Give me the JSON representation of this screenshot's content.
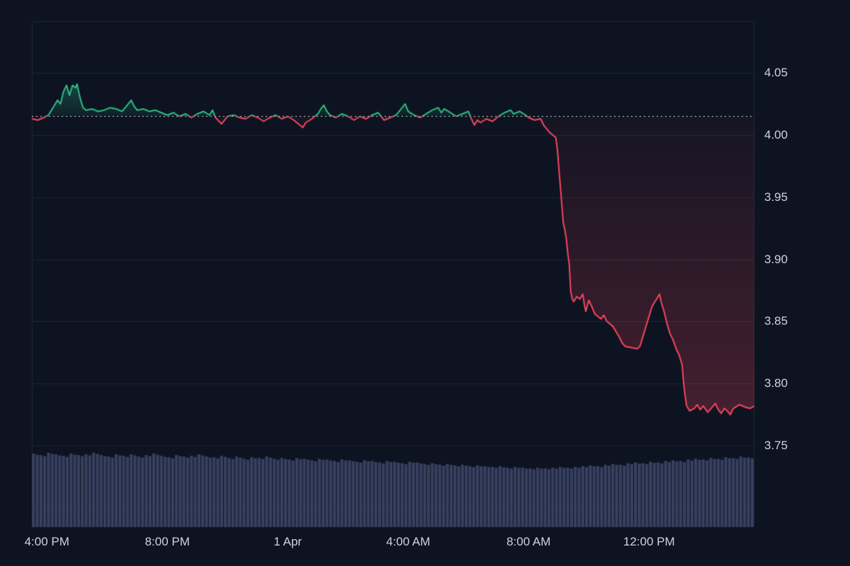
{
  "chart_data": {
    "type": "line",
    "description": "Cryptocurrency price line chart with baseline comparison and volume bars, dark theme",
    "baseline": 4.015,
    "x_axis": {
      "range_hours": [
        0,
        24
      ],
      "tick_hours": [
        0.5,
        4.5,
        8.5,
        12.5,
        16.5,
        20.5
      ],
      "tick_labels": [
        "4:00 PM",
        "8:00 PM",
        "1 Apr",
        "4:00 AM",
        "8:00 AM",
        "12:00 PM"
      ]
    },
    "y_axis": {
      "tick_values": [
        4.05,
        4.0,
        3.95,
        3.9,
        3.85,
        3.8,
        3.75
      ],
      "tick_labels": [
        "4.05",
        "4.00",
        "3.95",
        "3.90",
        "3.85",
        "3.80",
        "3.75"
      ],
      "grid_values": [
        4.05,
        4.0,
        3.95,
        3.9,
        3.85,
        3.8,
        3.75,
        3.7
      ]
    },
    "series": [
      {
        "name": "price",
        "points": [
          [
            0,
            4.013
          ],
          [
            0.2,
            4.012
          ],
          [
            0.4,
            4.014
          ],
          [
            0.55,
            4.016
          ],
          [
            0.7,
            4.022
          ],
          [
            0.85,
            4.028
          ],
          [
            0.95,
            4.025
          ],
          [
            1.05,
            4.035
          ],
          [
            1.15,
            4.04
          ],
          [
            1.25,
            4.032
          ],
          [
            1.35,
            4.04
          ],
          [
            1.45,
            4.038
          ],
          [
            1.5,
            4.041
          ],
          [
            1.6,
            4.03
          ],
          [
            1.7,
            4.022
          ],
          [
            1.8,
            4.02
          ],
          [
            2.0,
            4.021
          ],
          [
            2.2,
            4.019
          ],
          [
            2.4,
            4.02
          ],
          [
            2.6,
            4.022
          ],
          [
            2.8,
            4.021
          ],
          [
            3.0,
            4.019
          ],
          [
            3.2,
            4.025
          ],
          [
            3.3,
            4.028
          ],
          [
            3.4,
            4.023
          ],
          [
            3.5,
            4.02
          ],
          [
            3.7,
            4.021
          ],
          [
            3.9,
            4.019
          ],
          [
            4.1,
            4.02
          ],
          [
            4.3,
            4.018
          ],
          [
            4.5,
            4.016
          ],
          [
            4.7,
            4.018
          ],
          [
            4.9,
            4.015
          ],
          [
            5.1,
            4.017
          ],
          [
            5.3,
            4.014
          ],
          [
            5.5,
            4.017
          ],
          [
            5.7,
            4.019
          ],
          [
            5.9,
            4.016
          ],
          [
            6.0,
            4.02
          ],
          [
            6.1,
            4.014
          ],
          [
            6.3,
            4.009
          ],
          [
            6.4,
            4.012
          ],
          [
            6.5,
            4.015
          ],
          [
            6.7,
            4.016
          ],
          [
            6.9,
            4.014
          ],
          [
            7.1,
            4.013
          ],
          [
            7.3,
            4.016
          ],
          [
            7.5,
            4.014
          ],
          [
            7.7,
            4.011
          ],
          [
            7.9,
            4.014
          ],
          [
            8.1,
            4.016
          ],
          [
            8.3,
            4.013
          ],
          [
            8.5,
            4.015
          ],
          [
            8.7,
            4.012
          ],
          [
            8.9,
            4.008
          ],
          [
            9.0,
            4.006
          ],
          [
            9.1,
            4.01
          ],
          [
            9.3,
            4.013
          ],
          [
            9.5,
            4.017
          ],
          [
            9.6,
            4.021
          ],
          [
            9.7,
            4.024
          ],
          [
            9.8,
            4.019
          ],
          [
            9.9,
            4.016
          ],
          [
            10.1,
            4.014
          ],
          [
            10.3,
            4.017
          ],
          [
            10.5,
            4.015
          ],
          [
            10.7,
            4.012
          ],
          [
            10.9,
            4.015
          ],
          [
            11.1,
            4.013
          ],
          [
            11.3,
            4.016
          ],
          [
            11.5,
            4.018
          ],
          [
            11.6,
            4.015
          ],
          [
            11.7,
            4.012
          ],
          [
            11.9,
            4.014
          ],
          [
            12.1,
            4.016
          ],
          [
            12.3,
            4.022
          ],
          [
            12.4,
            4.025
          ],
          [
            12.5,
            4.019
          ],
          [
            12.7,
            4.016
          ],
          [
            12.9,
            4.014
          ],
          [
            13.1,
            4.017
          ],
          [
            13.3,
            4.02
          ],
          [
            13.5,
            4.022
          ],
          [
            13.6,
            4.018
          ],
          [
            13.7,
            4.021
          ],
          [
            13.9,
            4.018
          ],
          [
            14.1,
            4.015
          ],
          [
            14.3,
            4.017
          ],
          [
            14.5,
            4.019
          ],
          [
            14.6,
            4.013
          ],
          [
            14.7,
            4.008
          ],
          [
            14.8,
            4.012
          ],
          [
            14.9,
            4.01
          ],
          [
            15.1,
            4.013
          ],
          [
            15.3,
            4.011
          ],
          [
            15.5,
            4.015
          ],
          [
            15.7,
            4.018
          ],
          [
            15.9,
            4.02
          ],
          [
            16.0,
            4.017
          ],
          [
            16.2,
            4.019
          ],
          [
            16.4,
            4.016
          ],
          [
            16.5,
            4.014
          ],
          [
            16.7,
            4.012
          ],
          [
            16.9,
            4.013
          ],
          [
            17.0,
            4.008
          ],
          [
            17.1,
            4.005
          ],
          [
            17.2,
            4.002
          ],
          [
            17.3,
            4.0
          ],
          [
            17.4,
            3.998
          ],
          [
            17.45,
            3.99
          ],
          [
            17.5,
            3.975
          ],
          [
            17.55,
            3.96
          ],
          [
            17.6,
            3.945
          ],
          [
            17.65,
            3.93
          ],
          [
            17.7,
            3.924
          ],
          [
            17.75,
            3.917
          ],
          [
            17.8,
            3.905
          ],
          [
            17.85,
            3.896
          ],
          [
            17.9,
            3.874
          ],
          [
            17.95,
            3.868
          ],
          [
            18.0,
            3.866
          ],
          [
            18.1,
            3.87
          ],
          [
            18.2,
            3.868
          ],
          [
            18.3,
            3.872
          ],
          [
            18.35,
            3.864
          ],
          [
            18.4,
            3.858
          ],
          [
            18.5,
            3.867
          ],
          [
            18.6,
            3.862
          ],
          [
            18.7,
            3.856
          ],
          [
            18.8,
            3.854
          ],
          [
            18.9,
            3.852
          ],
          [
            19.0,
            3.855
          ],
          [
            19.1,
            3.85
          ],
          [
            19.3,
            3.846
          ],
          [
            19.5,
            3.838
          ],
          [
            19.6,
            3.833
          ],
          [
            19.7,
            3.83
          ],
          [
            19.9,
            3.829
          ],
          [
            20.1,
            3.828
          ],
          [
            20.2,
            3.83
          ],
          [
            20.3,
            3.838
          ],
          [
            20.45,
            3.85
          ],
          [
            20.6,
            3.862
          ],
          [
            20.75,
            3.868
          ],
          [
            20.85,
            3.872
          ],
          [
            20.9,
            3.866
          ],
          [
            21.0,
            3.858
          ],
          [
            21.1,
            3.848
          ],
          [
            21.2,
            3.84
          ],
          [
            21.3,
            3.835
          ],
          [
            21.4,
            3.828
          ],
          [
            21.5,
            3.823
          ],
          [
            21.6,
            3.815
          ],
          [
            21.65,
            3.8
          ],
          [
            21.7,
            3.79
          ],
          [
            21.75,
            3.782
          ],
          [
            21.85,
            3.778
          ],
          [
            22.0,
            3.78
          ],
          [
            22.1,
            3.783
          ],
          [
            22.2,
            3.779
          ],
          [
            22.3,
            3.782
          ],
          [
            22.45,
            3.777
          ],
          [
            22.6,
            3.781
          ],
          [
            22.7,
            3.784
          ],
          [
            22.8,
            3.779
          ],
          [
            22.9,
            3.776
          ],
          [
            23.0,
            3.78
          ],
          [
            23.1,
            3.778
          ],
          [
            23.2,
            3.775
          ],
          [
            23.3,
            3.78
          ],
          [
            23.5,
            3.783
          ],
          [
            23.7,
            3.781
          ],
          [
            23.85,
            3.78
          ],
          [
            24,
            3.782
          ]
        ]
      }
    ],
    "volume": {
      "values": [
        0.99,
        0.97,
        1.0,
        0.98,
        0.96,
        0.99,
        0.97,
        0.98,
        1.0,
        0.97,
        0.95,
        0.98,
        0.96,
        0.98,
        0.95,
        0.97,
        0.99,
        0.96,
        0.94,
        0.97,
        0.95,
        0.96,
        0.98,
        0.95,
        0.94,
        0.96,
        0.93,
        0.95,
        0.92,
        0.94,
        0.93,
        0.95,
        0.92,
        0.93,
        0.91,
        0.93,
        0.92,
        0.9,
        0.92,
        0.91,
        0.89,
        0.91,
        0.9,
        0.88,
        0.9,
        0.89,
        0.87,
        0.89,
        0.88,
        0.86,
        0.88,
        0.87,
        0.85,
        0.86,
        0.84,
        0.85,
        0.83,
        0.84,
        0.82,
        0.83,
        0.82,
        0.81,
        0.82,
        0.8,
        0.81,
        0.8,
        0.79,
        0.8,
        0.79,
        0.8,
        0.81,
        0.8,
        0.81,
        0.82,
        0.83,
        0.82,
        0.84,
        0.85,
        0.84,
        0.86,
        0.87,
        0.86,
        0.88,
        0.87,
        0.89,
        0.9,
        0.89,
        0.91,
        0.92,
        0.91,
        0.93,
        0.92,
        0.94,
        0.93,
        0.95,
        0.94
      ]
    },
    "legend": "none",
    "grid": "horizontal",
    "colors": {
      "background": "#0d1321",
      "grid": "#1e2534",
      "up": "#2ebd85",
      "down": "#f6465d",
      "volume": "#384060",
      "baseline_dots": "#d8dce6",
      "tick_text": "#ced3dd"
    }
  }
}
